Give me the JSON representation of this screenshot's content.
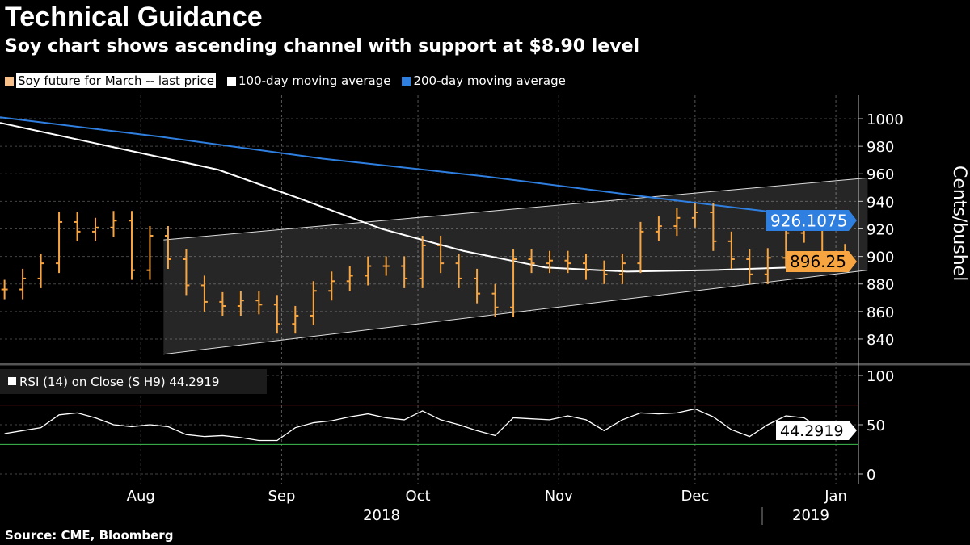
{
  "header": {
    "title": "Technical Guidance",
    "subtitle": "Soy chart shows ascending channel with support at $8.90 level"
  },
  "source": "Source: CME, Bloomberg",
  "chart_data": [
    {
      "type": "ohlc-line",
      "ylabel": "Cents/bushel",
      "ylim": [
        825,
        1015
      ],
      "yticks": [
        840,
        860,
        880,
        900,
        920,
        940,
        960,
        980,
        1000
      ],
      "xticks": [
        "Aug",
        "Sep",
        "Oct",
        "Nov",
        "Dec",
        "Jan"
      ],
      "xtick_dates": [
        "2018-08-01",
        "2018-09-01",
        "2018-10-01",
        "2018-11-01",
        "2018-12-01",
        "2019-01-01"
      ],
      "year_labels": [
        "2018",
        "2019"
      ],
      "grid": true,
      "legend_placement": "top-left",
      "series": [
        {
          "name": "Soy future for March -- last price",
          "color": "#f7a541",
          "last_label": "896.25",
          "x": [
            "2018-07-02",
            "2018-07-06",
            "2018-07-10",
            "2018-07-14",
            "2018-07-18",
            "2018-07-22",
            "2018-07-26",
            "2018-07-30",
            "2018-08-03",
            "2018-08-07",
            "2018-08-11",
            "2018-08-15",
            "2018-08-19",
            "2018-08-23",
            "2018-08-27",
            "2018-08-31",
            "2018-09-04",
            "2018-09-08",
            "2018-09-12",
            "2018-09-16",
            "2018-09-20",
            "2018-09-24",
            "2018-09-28",
            "2018-10-02",
            "2018-10-06",
            "2018-10-10",
            "2018-10-14",
            "2018-10-18",
            "2018-10-22",
            "2018-10-26",
            "2018-10-30",
            "2018-11-03",
            "2018-11-07",
            "2018-11-11",
            "2018-11-15",
            "2018-11-19",
            "2018-11-23",
            "2018-11-27",
            "2018-12-01",
            "2018-12-05",
            "2018-12-09",
            "2018-12-13",
            "2018-12-17",
            "2018-12-21",
            "2018-12-25",
            "2018-12-29",
            "2019-01-03"
          ],
          "y": [
            876,
            884,
            895,
            925,
            918,
            921,
            926,
            890,
            915,
            898,
            879,
            867,
            864,
            868,
            865,
            851,
            857,
            875,
            882,
            886,
            893,
            893,
            884,
            908,
            895,
            884,
            873,
            863,
            898,
            895,
            897,
            895,
            890,
            887,
            895,
            918,
            922,
            928,
            932,
            911,
            898,
            887,
            899,
            917,
            921,
            902,
            896.25
          ]
        },
        {
          "name": "100-day moving average",
          "color": "#ffffff",
          "x": [
            "2018-07-01",
            "2018-08-18",
            "2018-09-05",
            "2018-09-23",
            "2018-10-11",
            "2018-10-29",
            "2018-11-16",
            "2018-12-04",
            "2018-12-22",
            "2019-01-03"
          ],
          "y": [
            997,
            963,
            942,
            920,
            904,
            892,
            889,
            890,
            892,
            892
          ]
        },
        {
          "name": "200-day moving average",
          "color": "#2f7fe0",
          "last_label": "926.1075",
          "x": [
            "2018-07-01",
            "2018-08-05",
            "2018-09-10",
            "2018-10-16",
            "2018-11-21",
            "2018-12-11",
            "2019-01-03"
          ],
          "y": [
            1001,
            987,
            971,
            958,
            943,
            935,
            926.1075
          ]
        }
      ],
      "channel": {
        "upper": {
          "x": [
            "2018-08-06",
            "2019-01-08"
          ],
          "y": [
            912,
            957
          ]
        },
        "lower": {
          "x": [
            "2018-08-06",
            "2019-01-08"
          ],
          "y": [
            829,
            890
          ]
        }
      }
    },
    {
      "type": "line",
      "legend": "RSI (14)  on Close (S H9) 44.2919",
      "last_label": "44.2919",
      "ylim": [
        -5,
        105
      ],
      "yticks": [
        0,
        50,
        100
      ],
      "overbought": 70,
      "oversold": 30,
      "colors": {
        "line": "#ffffff",
        "overbought": "#d9262a",
        "oversold": "#3fbf4f"
      },
      "x": [
        "2018-07-02",
        "2018-07-06",
        "2018-07-10",
        "2018-07-14",
        "2018-07-18",
        "2018-07-22",
        "2018-07-26",
        "2018-07-30",
        "2018-08-03",
        "2018-08-07",
        "2018-08-11",
        "2018-08-15",
        "2018-08-19",
        "2018-08-23",
        "2018-08-27",
        "2018-08-31",
        "2018-09-04",
        "2018-09-08",
        "2018-09-12",
        "2018-09-16",
        "2018-09-20",
        "2018-09-24",
        "2018-09-28",
        "2018-10-02",
        "2018-10-06",
        "2018-10-10",
        "2018-10-14",
        "2018-10-18",
        "2018-10-22",
        "2018-10-26",
        "2018-10-30",
        "2018-11-03",
        "2018-11-07",
        "2018-11-11",
        "2018-11-15",
        "2018-11-19",
        "2018-11-23",
        "2018-11-27",
        "2018-12-01",
        "2018-12-05",
        "2018-12-09",
        "2018-12-13",
        "2018-12-17",
        "2018-12-21",
        "2018-12-25",
        "2018-12-29",
        "2019-01-03"
      ],
      "y": [
        41,
        44,
        47,
        60,
        62,
        57,
        50,
        48,
        50,
        48,
        40,
        38,
        39,
        37,
        34,
        34,
        47,
        52,
        54,
        58,
        61,
        57,
        55,
        64,
        55,
        50,
        44,
        39,
        57,
        56,
        55,
        59,
        55,
        44,
        55,
        62,
        61,
        62,
        66,
        58,
        45,
        38,
        50,
        59,
        57,
        45,
        44.29
      ]
    }
  ]
}
